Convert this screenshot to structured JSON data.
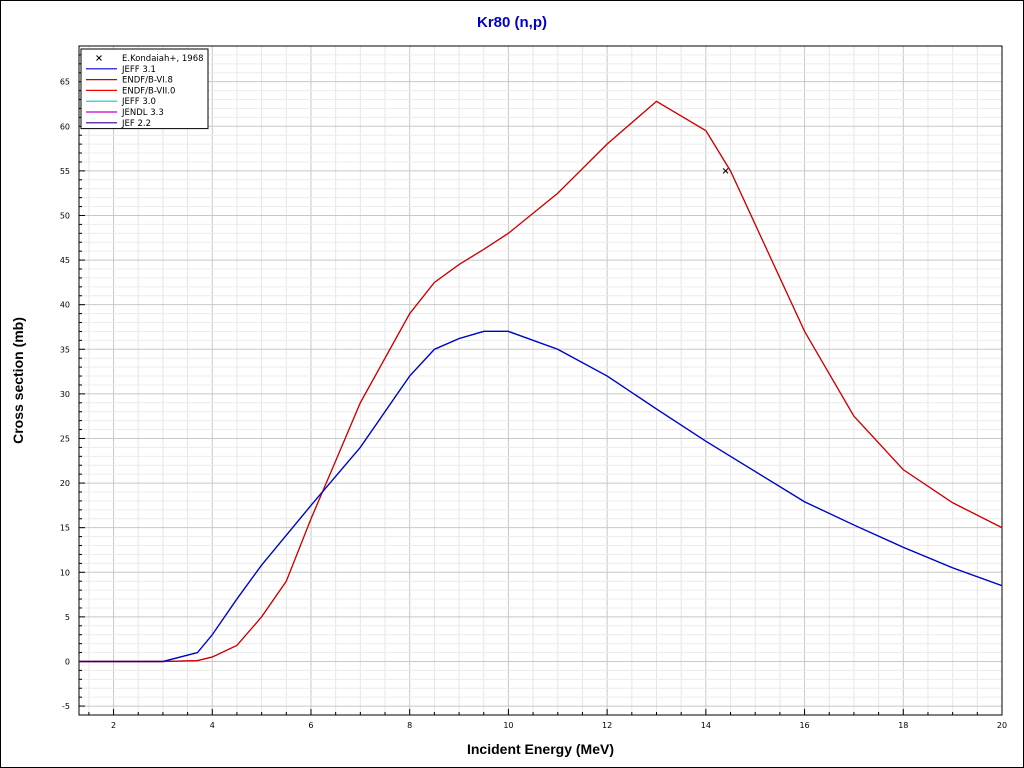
{
  "chart_data": {
    "type": "line",
    "title": "Kr80 (n,p)",
    "xlabel": "Incident Energy (MeV)",
    "ylabel": "Cross section (mb)",
    "xlim": [
      1.3,
      20
    ],
    "ylim": [
      -6,
      69
    ],
    "x_ticks": [
      2,
      4,
      6,
      8,
      10,
      12,
      14,
      16,
      18,
      20
    ],
    "y_ticks": [
      -5,
      0,
      5,
      10,
      15,
      20,
      25,
      30,
      35,
      40,
      45,
      50,
      55,
      60,
      65
    ],
    "grid": true,
    "legend_position": "top-left",
    "series": [
      {
        "name": "E.Kondaiah+, 1968",
        "kind": "points",
        "marker": "x",
        "color": "#000000",
        "x": [
          14.4
        ],
        "y": [
          55
        ]
      },
      {
        "name": "JEFF 3.1",
        "kind": "line",
        "color": "#0000cc",
        "x": [
          1.3,
          3.0,
          3.7,
          4.0,
          4.5,
          5.0,
          6.0,
          7.0,
          8.0,
          8.5,
          9.0,
          9.5,
          10.0,
          11.0,
          12.0,
          13.0,
          14.0,
          15.0,
          16.0,
          17.0,
          18.0,
          19.0,
          20.0
        ],
        "y": [
          0,
          0,
          1.0,
          3.0,
          7.0,
          10.8,
          17.5,
          24.0,
          32.0,
          35.0,
          36.2,
          37.0,
          37.0,
          35.0,
          32.0,
          28.3,
          24.7,
          21.3,
          17.9,
          15.3,
          12.8,
          10.5,
          8.5
        ]
      },
      {
        "name": "ENDF/B-VI.8",
        "kind": "line",
        "color": "#cc0000",
        "x": [
          1.3,
          3.0,
          3.7,
          4.0,
          4.5,
          5.0,
          5.5,
          6.0,
          6.5,
          7.0,
          7.5,
          8.0,
          8.5,
          9.0,
          9.5,
          10.0,
          11.0,
          12.0,
          13.0,
          14.0,
          14.5,
          15.0,
          16.0,
          17.0,
          18.0,
          19.0,
          20.0
        ],
        "y": [
          0,
          0,
          0.1,
          0.5,
          1.8,
          5.0,
          9.0,
          16.0,
          22.5,
          29.0,
          34.0,
          39.0,
          42.5,
          44.5,
          46.2,
          48.0,
          52.5,
          58.0,
          62.8,
          59.5,
          55.0,
          49.0,
          37.0,
          27.5,
          21.5,
          17.8,
          15.0
        ]
      },
      {
        "name": "ENDF/B-VII.0",
        "kind": "line",
        "color": "#ff0000",
        "same_as": "ENDF/B-VI.8"
      },
      {
        "name": "JEFF 3.0",
        "kind": "line",
        "color": "#00cccc",
        "same_as": "JEFF 3.1"
      },
      {
        "name": "JENDL 3.3",
        "kind": "line",
        "color": "#cc00cc",
        "same_as": "JEFF 3.1"
      },
      {
        "name": "JEF 2.2",
        "kind": "line",
        "color": "#330099",
        "same_as": "JEFF 3.1"
      }
    ]
  }
}
